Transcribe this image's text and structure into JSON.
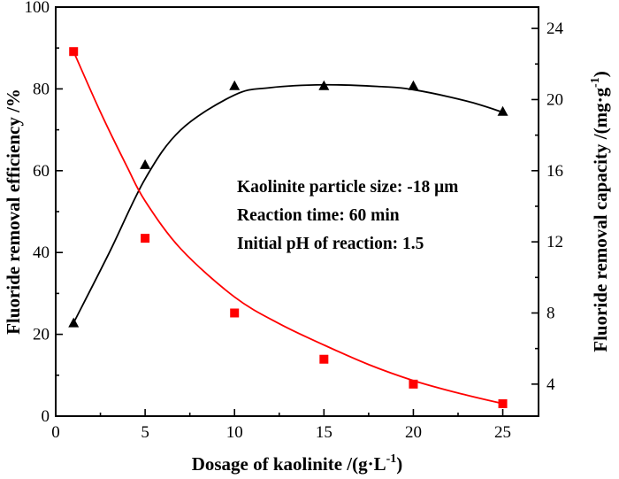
{
  "chart_data": {
    "type": "scatter",
    "x_axis": {
      "label": "Dosage of kaolinite /(g·L",
      "label_sup": "-1",
      "label_suffix": ")",
      "range": [
        0,
        27
      ],
      "ticks": [
        0,
        5,
        10,
        15,
        20,
        25
      ]
    },
    "y_left": {
      "label": "Fluoride removal efficiency /%",
      "range": [
        0,
        100
      ],
      "ticks": [
        0,
        20,
        40,
        60,
        80,
        100
      ]
    },
    "y_right": {
      "label": "Fluoride removal capacity /(mg·g",
      "label_sup": "-1",
      "label_suffix": ")",
      "range": [
        2.2,
        25.2
      ],
      "ticks": [
        4,
        8,
        12,
        16,
        20,
        24
      ]
    },
    "series": [
      {
        "axis": "left",
        "marker": "triangle",
        "color": "#000000",
        "x": [
          1,
          5,
          10,
          15,
          20,
          25
        ],
        "y": [
          22.8,
          61.5,
          80.8,
          80.8,
          80.8,
          74.5
        ],
        "fit": [
          [
            1,
            22.8
          ],
          [
            3,
            40
          ],
          [
            5,
            58
          ],
          [
            7,
            70
          ],
          [
            10,
            78.5
          ],
          [
            12,
            80.3
          ],
          [
            15,
            81
          ],
          [
            18,
            80.6
          ],
          [
            20,
            79.8
          ],
          [
            23,
            77
          ],
          [
            25,
            74.3
          ]
        ]
      },
      {
        "axis": "right",
        "marker": "square",
        "color": "#ff0000",
        "x": [
          1,
          5,
          10,
          15,
          20,
          25
        ],
        "y": [
          22.7,
          12.2,
          8.0,
          5.4,
          4.0,
          2.9
        ],
        "fit": [
          [
            1,
            22.7
          ],
          [
            2.5,
            19.3
          ],
          [
            4,
            16.2
          ],
          [
            5,
            14.3
          ],
          [
            7,
            11.6
          ],
          [
            10,
            8.9
          ],
          [
            12.5,
            7.4
          ],
          [
            15,
            6.2
          ],
          [
            17.5,
            5.1
          ],
          [
            20,
            4.2
          ],
          [
            22.5,
            3.5
          ],
          [
            25,
            2.9
          ]
        ]
      }
    ],
    "annotations": [
      "Kaolinite particle size: -18 μm",
      "Reaction time: 60 min",
      "Initial pH of reaction: 1.5"
    ],
    "grid": false
  }
}
